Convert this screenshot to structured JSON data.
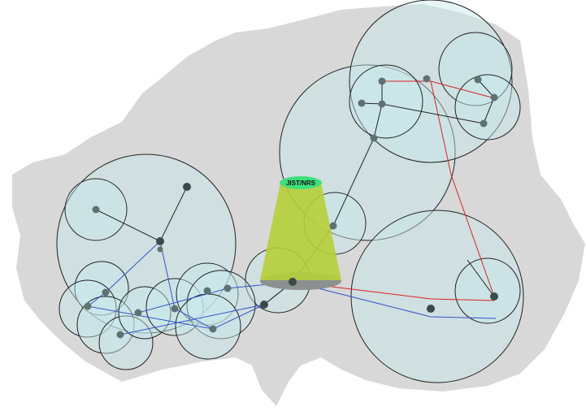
{
  "label": "JIST/NRS"
}
